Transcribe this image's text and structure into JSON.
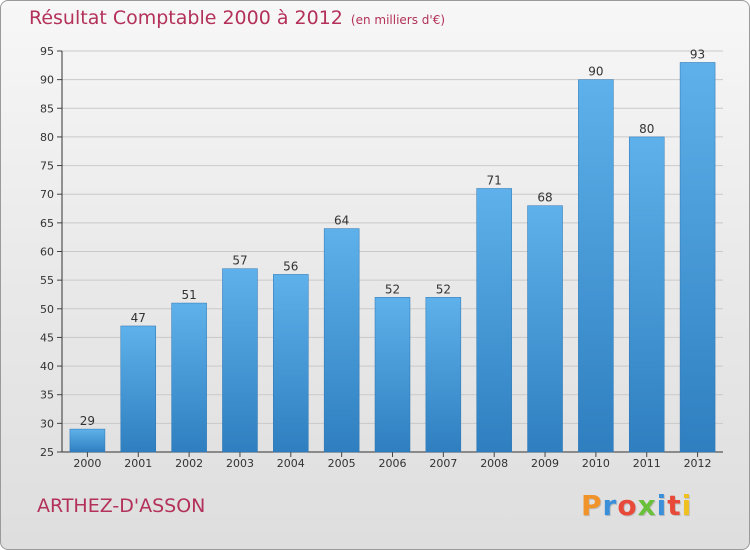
{
  "chart_data": {
    "type": "bar",
    "title": "Résultat Comptable 2000 à 2012",
    "subtitle": "(en milliers d'€)",
    "categories": [
      "2000",
      "2001",
      "2002",
      "2003",
      "2004",
      "2005",
      "2006",
      "2007",
      "2008",
      "2009",
      "2010",
      "2011",
      "2012"
    ],
    "values": [
      29,
      47,
      51,
      57,
      56,
      64,
      52,
      52,
      71,
      68,
      90,
      80,
      93
    ],
    "ylim": [
      25,
      95
    ],
    "yticks": [
      25,
      30,
      35,
      40,
      45,
      50,
      55,
      60,
      65,
      70,
      75,
      80,
      85,
      90,
      95
    ],
    "grid": true,
    "xlabel": "",
    "ylabel": "",
    "bar_color": "#3d95d8",
    "grid_color": "#c9c9c9"
  },
  "footer": {
    "commune": "ARTHEZ-D'ASSON",
    "brand": "Proxiti"
  },
  "colors": {
    "title": "#b3315a",
    "brand_letters": [
      "#f0932b",
      "#3b8fd9",
      "#e84a3a",
      "#6abf3b",
      "#3b8fd9",
      "#e84a3a",
      "#f0c020"
    ]
  }
}
